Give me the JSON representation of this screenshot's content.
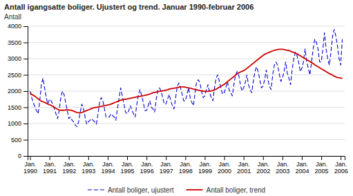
{
  "chart_data": {
    "type": "line",
    "title": "Antall igangsatte boliger. Ujustert og trend. Januar 1990-februar 2006",
    "ylabel": "Antall",
    "categories": [
      "Jan.\n1990",
      null,
      null,
      null,
      null,
      null,
      null,
      null,
      null,
      null,
      null,
      null,
      "Jan.\n1991",
      null,
      null,
      null,
      null,
      null,
      null,
      null,
      null,
      null,
      null,
      null,
      "Jan.\n1992",
      null,
      null,
      null,
      null,
      null,
      null,
      null,
      null,
      null,
      null,
      null,
      "Jan.\n1993",
      null,
      null,
      null,
      null,
      null,
      null,
      null,
      null,
      null,
      null,
      null,
      "Jan.\n1994",
      null,
      null,
      null,
      null,
      null,
      null,
      null,
      null,
      null,
      null,
      null,
      "Jan.\n1995",
      null,
      null,
      null,
      null,
      null,
      null,
      null,
      null,
      null,
      null,
      null,
      "Jan.\n1996",
      null,
      null,
      null,
      null,
      null,
      null,
      null,
      null,
      null,
      null,
      null,
      "Jan.\n1997",
      null,
      null,
      null,
      null,
      null,
      null,
      null,
      null,
      null,
      null,
      null,
      "Jan.\n1998",
      null,
      null,
      null,
      null,
      null,
      null,
      null,
      null,
      null,
      null,
      null,
      "Jan.\n1999",
      null,
      null,
      null,
      null,
      null,
      null,
      null,
      null,
      null,
      null,
      null,
      "Jan.\n2000",
      null,
      null,
      null,
      null,
      null,
      null,
      null,
      null,
      null,
      null,
      null,
      "Jan.\n2001",
      null,
      null,
      null,
      null,
      null,
      null,
      null,
      null,
      null,
      null,
      null,
      "Jan.\n2002",
      null,
      null,
      null,
      null,
      null,
      null,
      null,
      null,
      null,
      null,
      null,
      "Jan.\n2003",
      null,
      null,
      null,
      null,
      null,
      null,
      null,
      null,
      null,
      null,
      null,
      "Jan.\n2004",
      null,
      null,
      null,
      null,
      null,
      null,
      null,
      null,
      null,
      null,
      null,
      "Jan.\n2005",
      null,
      null,
      null,
      null,
      null,
      null,
      null,
      null,
      null,
      null,
      null,
      "Jan.\n2006",
      null
    ],
    "series": [
      {
        "name": "Antall boliger, ujustert",
        "color": "#0000cc",
        "line_style": "dashed",
        "values": [
          2000,
          1800,
          1650,
          1500,
          1400,
          1300,
          1700,
          2200,
          2400,
          2100,
          1800,
          1600,
          1750,
          1700,
          1600,
          1450,
          1300,
          1150,
          1400,
          1800,
          2000,
          1900,
          1650,
          1400,
          1150,
          1200,
          1100,
          1050,
          950,
          900,
          1050,
          1350,
          1600,
          1450,
          1200,
          980,
          1050,
          1100,
          1150,
          1100,
          1050,
          980,
          1300,
          1650,
          1800,
          1700,
          1450,
          1200,
          1200,
          1200,
          1300,
          1250,
          1200,
          1100,
          1450,
          1800,
          2100,
          1850,
          1600,
          1350,
          1300,
          1400,
          1550,
          1400,
          1300,
          1200,
          1600,
          1900,
          2050,
          1850,
          1650,
          1400,
          1400,
          1550,
          1700,
          1500,
          1450,
          1350,
          1750,
          2050,
          2100,
          2000,
          1800,
          1600,
          1600,
          1750,
          1900,
          1700,
          1550,
          1450,
          1800,
          2150,
          2250,
          2100,
          1900,
          1700,
          1700,
          1900,
          2100,
          1800,
          1650,
          1550,
          1950,
          2300,
          2350,
          2250,
          2000,
          1800,
          1850,
          2050,
          2200,
          1950,
          1800,
          1700,
          2100,
          2400,
          2500,
          2300,
          2100,
          1900,
          1950,
          2100,
          2300,
          2050,
          1950,
          1850,
          2200,
          2500,
          2600,
          2500,
          2200,
          2000,
          2100,
          2250,
          2500,
          2200,
          2050,
          1950,
          2300,
          2600,
          2750,
          2600,
          2350,
          2100,
          2150,
          2350,
          2650,
          2350,
          2150,
          2050,
          2500,
          2800,
          2900,
          2800,
          2550,
          2300,
          2400,
          2600,
          2900,
          2550,
          2400,
          2200,
          2650,
          3000,
          3200,
          3100,
          2900,
          2600,
          2700,
          2900,
          3300,
          2900,
          2700,
          2500,
          2900,
          3300,
          3600,
          3500,
          3300,
          2900,
          2900,
          3300,
          3800,
          3300,
          3000,
          2800,
          3200,
          3700,
          3900,
          3700,
          3400,
          3000,
          2800,
          3600
        ]
      },
      {
        "name": "Antall boliger, trend",
        "color": "#cc0000",
        "line_style": "solid",
        "values": [
          1950,
          1900,
          1870,
          1840,
          1800,
          1760,
          1720,
          1690,
          1670,
          1650,
          1630,
          1600,
          1580,
          1560,
          1530,
          1500,
          1470,
          1440,
          1420,
          1410,
          1410,
          1410,
          1420,
          1420,
          1420,
          1410,
          1400,
          1380,
          1360,
          1340,
          1330,
          1330,
          1340,
          1360,
          1380,
          1400,
          1420,
          1440,
          1460,
          1480,
          1490,
          1500,
          1510,
          1520,
          1530,
          1540,
          1550,
          1560,
          1570,
          1580,
          1600,
          1620,
          1640,
          1660,
          1680,
          1700,
          1720,
          1730,
          1740,
          1750,
          1760,
          1770,
          1780,
          1790,
          1800,
          1810,
          1820,
          1830,
          1840,
          1850,
          1860,
          1870,
          1880,
          1890,
          1910,
          1930,
          1950,
          1960,
          1970,
          1980,
          1990,
          2000,
          2010,
          2020,
          2030,
          2040,
          2060,
          2070,
          2080,
          2090,
          2100,
          2110,
          2120,
          2130,
          2130,
          2130,
          2120,
          2110,
          2100,
          2090,
          2080,
          2060,
          2050,
          2040,
          2030,
          2020,
          2010,
          2000,
          1990,
          1990,
          1990,
          2000,
          2010,
          2020,
          2040,
          2060,
          2090,
          2120,
          2150,
          2180,
          2210,
          2250,
          2290,
          2330,
          2370,
          2410,
          2450,
          2490,
          2530,
          2560,
          2590,
          2610,
          2630,
          2660,
          2700,
          2740,
          2780,
          2820,
          2860,
          2900,
          2940,
          2980,
          3020,
          3060,
          3100,
          3130,
          3160,
          3180,
          3200,
          3220,
          3240,
          3260,
          3270,
          3280,
          3290,
          3290,
          3290,
          3280,
          3270,
          3260,
          3250,
          3230,
          3210,
          3190,
          3170,
          3150,
          3120,
          3090,
          3060,
          3030,
          3000,
          2970,
          2940,
          2910,
          2880,
          2850,
          2810,
          2780,
          2750,
          2720,
          2690,
          2660,
          2630,
          2600,
          2570,
          2540,
          2520,
          2490,
          2460,
          2440,
          2420,
          2410,
          2400,
          2390
        ]
      }
    ],
    "ylim": [
      0,
      4000
    ],
    "yticks": [
      0,
      500,
      1000,
      1500,
      2000,
      2500,
      3000,
      3500,
      4000
    ],
    "grid": true,
    "legend": "bottom"
  }
}
